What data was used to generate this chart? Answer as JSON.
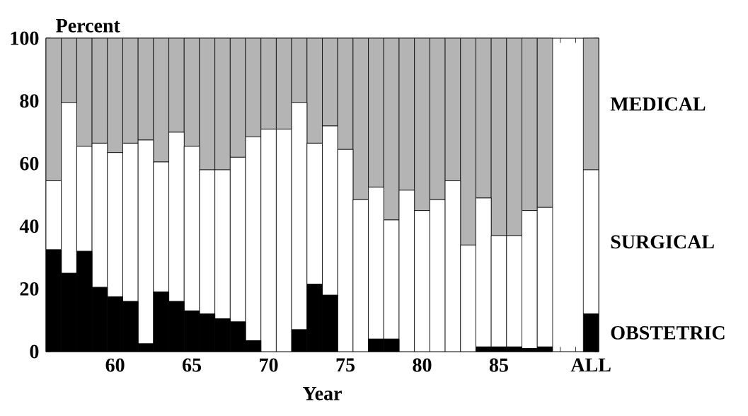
{
  "chart_data": {
    "type": "bar",
    "stacked": true,
    "xlabel": "Year",
    "ylabel": "Percent",
    "categories": [
      null,
      null,
      null,
      null,
      "60",
      null,
      null,
      null,
      null,
      "65",
      null,
      null,
      null,
      null,
      "70",
      null,
      null,
      null,
      null,
      "75",
      null,
      null,
      null,
      null,
      "80",
      null,
      null,
      null,
      null,
      "85",
      null,
      null,
      null,
      null,
      null,
      "ALL"
    ],
    "series": [
      {
        "name": "OBSTETRIC",
        "color": "#000000",
        "values": [
          32.5,
          25,
          32,
          20.5,
          17.5,
          16,
          2.5,
          19,
          16,
          13,
          12,
          10.5,
          9.5,
          3.5,
          0,
          0,
          7,
          21.5,
          18,
          0,
          0,
          4,
          4,
          0,
          0,
          0,
          0,
          0,
          1.5,
          1.5,
          1.5,
          1,
          1.5,
          null,
          null,
          12
        ]
      },
      {
        "name": "SURGICAL",
        "color": "#ffffff",
        "values": [
          22,
          54.5,
          33.5,
          46,
          46,
          50.5,
          65,
          41.5,
          54,
          52.5,
          46,
          47.5,
          52.5,
          65,
          71,
          71,
          72.5,
          45,
          54,
          64.5,
          48.5,
          48.5,
          38,
          51.5,
          45,
          48.5,
          54.5,
          34,
          47.5,
          35.5,
          35.5,
          44,
          44.5,
          null,
          null,
          46
        ]
      },
      {
        "name": "MEDICAL",
        "color": "#b4b4b4",
        "values": [
          45.5,
          20.5,
          34.5,
          33.5,
          36.5,
          33.5,
          32.5,
          39.5,
          30,
          34.5,
          42,
          42,
          38,
          31.5,
          29,
          29,
          20.5,
          33.5,
          28,
          35.5,
          51.5,
          47.5,
          58,
          48.5,
          55,
          51.5,
          45.5,
          66,
          51,
          63,
          63,
          55,
          54,
          null,
          null,
          42
        ]
      }
    ],
    "ylim": [
      0,
      100
    ],
    "yticks": [
      0,
      20,
      40,
      60,
      80,
      100
    ],
    "grid": false,
    "legend": "right"
  }
}
